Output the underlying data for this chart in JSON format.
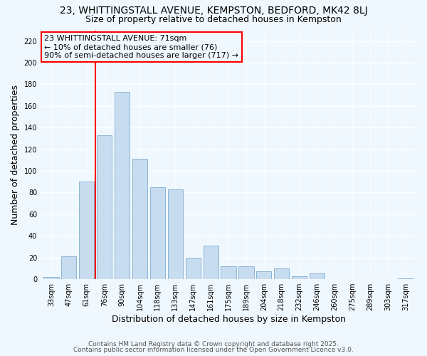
{
  "title_line1": "23, WHITTINGSTALL AVENUE, KEMPSTON, BEDFORD, MK42 8LJ",
  "title_line2": "Size of property relative to detached houses in Kempston",
  "xlabel": "Distribution of detached houses by size in Kempston",
  "ylabel": "Number of detached properties",
  "bar_labels": [
    "33sqm",
    "47sqm",
    "61sqm",
    "76sqm",
    "90sqm",
    "104sqm",
    "118sqm",
    "133sqm",
    "147sqm",
    "161sqm",
    "175sqm",
    "189sqm",
    "204sqm",
    "218sqm",
    "232sqm",
    "246sqm",
    "260sqm",
    "275sqm",
    "289sqm",
    "303sqm",
    "317sqm"
  ],
  "bar_heights": [
    2,
    21,
    90,
    133,
    173,
    111,
    85,
    83,
    20,
    31,
    12,
    12,
    7,
    10,
    3,
    5,
    0,
    0,
    0,
    0,
    1
  ],
  "bar_color": "#c8dcef",
  "bar_edge_color": "#8ab4d4",
  "vline_color": "red",
  "ylim": [
    0,
    230
  ],
  "yticks": [
    0,
    20,
    40,
    60,
    80,
    100,
    120,
    140,
    160,
    180,
    200,
    220
  ],
  "annotation_title": "23 WHITTINGSTALL AVENUE: 71sqm",
  "annotation_line1": "← 10% of detached houses are smaller (76)",
  "annotation_line2": "90% of semi-detached houses are larger (717) →",
  "footer_line1": "Contains HM Land Registry data © Crown copyright and database right 2025.",
  "footer_line2": "Contains public sector information licensed under the Open Government Licence v3.0.",
  "bg_color": "#f0f8ff",
  "grid_color": "#d0e0f0"
}
